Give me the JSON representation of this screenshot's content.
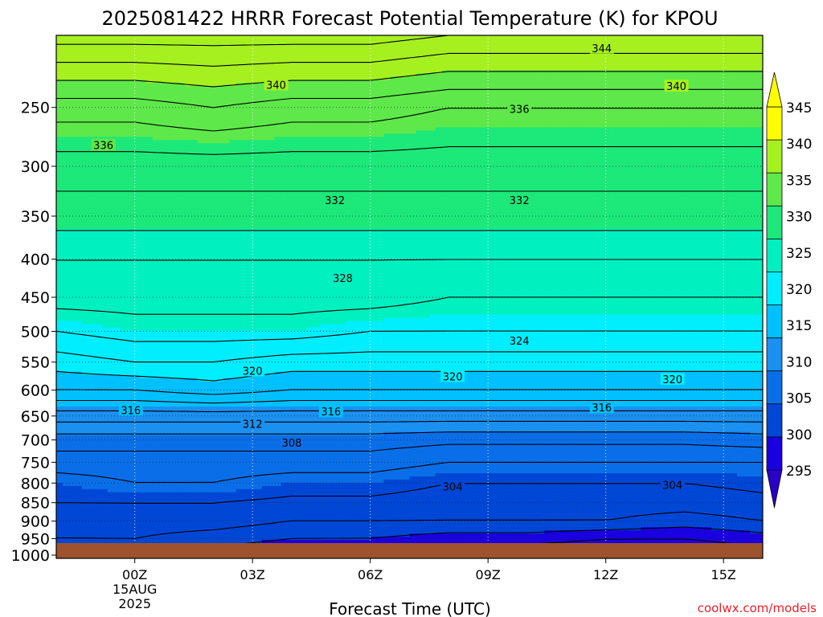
{
  "chart_data": {
    "type": "heatmap",
    "title": "2025081422 HRRR Forecast Potential Temperature (K) for KPOU",
    "xlabel": "Forecast Time (UTC)",
    "ylabel": "",
    "credit": "coolwx.com/models",
    "x_ticks": [
      {
        "hour": 0,
        "label": "00Z",
        "sub1": "15AUG",
        "sub2": "2025"
      },
      {
        "hour": 3,
        "label": "03Z",
        "sub1": "",
        "sub2": ""
      },
      {
        "hour": 6,
        "label": "06Z",
        "sub1": "",
        "sub2": ""
      },
      {
        "hour": 9,
        "label": "09Z",
        "sub1": "",
        "sub2": ""
      },
      {
        "hour": 12,
        "label": "12Z",
        "sub1": "",
        "sub2": ""
      },
      {
        "hour": 15,
        "label": "15Z",
        "sub1": "",
        "sub2": ""
      }
    ],
    "xlim": [
      -2,
      16
    ],
    "y_ticks": [
      250,
      300,
      350,
      400,
      450,
      500,
      550,
      600,
      650,
      700,
      750,
      800,
      850,
      900,
      950,
      1000
    ],
    "ylim": [
      1010,
      200
    ],
    "y_scale": "log",
    "grid": true,
    "colorbar": {
      "labels": [
        "345",
        "340",
        "335",
        "330",
        "325",
        "320",
        "315",
        "310",
        "305",
        "300",
        "295"
      ],
      "levels": [
        295,
        300,
        305,
        310,
        315,
        320,
        325,
        330,
        335,
        340,
        345
      ],
      "colors": [
        "#1a00e0",
        "#0047d6",
        "#0a6ee8",
        "#1a90f0",
        "#00c0ff",
        "#00eeff",
        "#00f0c0",
        "#1de87a",
        "#5ee84a",
        "#a6f020",
        "#ffff00"
      ],
      "low_color": "#2a00c8",
      "high_color": "#ffff00"
    },
    "ground_color": "#a0522d",
    "hours": [
      -2,
      0,
      2,
      4,
      6,
      8,
      10,
      12,
      14,
      16
    ],
    "series": [
      {
        "level": 1000,
        "values": [
          300,
          301,
          299,
          298,
          297,
          297,
          296,
          296,
          296,
          297
        ]
      },
      {
        "level": 950,
        "values": [
          302,
          302,
          301,
          300,
          300,
          299,
          299,
          298,
          298,
          299
        ]
      },
      {
        "level": 900,
        "values": [
          303,
          303,
          303,
          302,
          302,
          302,
          302,
          302,
          301,
          302
        ]
      },
      {
        "level": 850,
        "values": [
          304,
          304,
          304,
          303.5,
          303.5,
          303,
          303,
          303,
          303,
          303.5
        ]
      },
      {
        "level": 800,
        "values": [
          305,
          306,
          306,
          305,
          305,
          304,
          304,
          304,
          304,
          304.5
        ]
      },
      {
        "level": 750,
        "values": [
          307,
          307,
          307,
          307,
          307,
          306,
          306,
          306,
          306,
          306
        ]
      },
      {
        "level": 700,
        "values": [
          309,
          309,
          309,
          309,
          309,
          308.5,
          308.5,
          308.5,
          308.5,
          309
        ]
      },
      {
        "level": 650,
        "values": [
          313,
          313,
          313,
          313,
          313,
          313,
          313,
          313,
          313,
          313
        ]
      },
      {
        "level": 600,
        "values": [
          318,
          318,
          319,
          318,
          318,
          318,
          318,
          318,
          318,
          318
        ]
      },
      {
        "level": 550,
        "values": [
          321,
          322,
          322,
          321,
          321,
          321,
          321,
          321,
          321,
          321
        ]
      },
      {
        "level": 500,
        "values": [
          324,
          325,
          325,
          325,
          324,
          324,
          324,
          324,
          324,
          324
        ]
      },
      {
        "level": 450,
        "values": [
          327,
          327,
          327,
          327,
          327,
          326,
          326,
          326,
          326,
          326
        ]
      },
      {
        "level": 400,
        "values": [
          328,
          328,
          328,
          328,
          328,
          328,
          328,
          328,
          328,
          328
        ]
      },
      {
        "level": 350,
        "values": [
          331,
          331,
          331,
          331,
          331,
          331,
          331,
          331,
          331,
          331
        ]
      },
      {
        "level": 300,
        "values": [
          333,
          333,
          333,
          333,
          333,
          333,
          333,
          333,
          333,
          333
        ]
      },
      {
        "level": 250,
        "values": [
          337,
          337,
          338,
          337,
          337,
          336,
          336,
          336,
          336,
          336
        ]
      },
      {
        "level": 200,
        "values": [
          345,
          345,
          345,
          345,
          345,
          344,
          344,
          344,
          344,
          344
        ]
      }
    ],
    "contour_labels": [
      {
        "value": "344",
        "hour": 11.9,
        "level": 208
      },
      {
        "value": "340",
        "hour": 3.6,
        "level": 233
      },
      {
        "value": "340",
        "hour": 13.8,
        "level": 234
      },
      {
        "value": "336",
        "hour": 9.8,
        "level": 251
      },
      {
        "value": "336",
        "hour": -0.8,
        "level": 281
      },
      {
        "value": "332",
        "hour": 5.1,
        "level": 333
      },
      {
        "value": "332",
        "hour": 9.8,
        "level": 333
      },
      {
        "value": "328",
        "hour": 5.3,
        "level": 424
      },
      {
        "value": "324",
        "hour": 9.8,
        "level": 515
      },
      {
        "value": "320",
        "hour": 3.0,
        "level": 565
      },
      {
        "value": "320",
        "hour": 8.1,
        "level": 575
      },
      {
        "value": "320",
        "hour": 13.7,
        "level": 580
      },
      {
        "value": "316",
        "hour": -0.1,
        "level": 638
      },
      {
        "value": "316",
        "hour": 5.0,
        "level": 641
      },
      {
        "value": "316",
        "hour": 11.9,
        "level": 633
      },
      {
        "value": "312",
        "hour": 3.0,
        "level": 666
      },
      {
        "value": "308",
        "hour": 4.0,
        "level": 706
      },
      {
        "value": "304",
        "hour": 8.1,
        "level": 808
      },
      {
        "value": "304",
        "hour": 13.7,
        "level": 804
      }
    ]
  }
}
